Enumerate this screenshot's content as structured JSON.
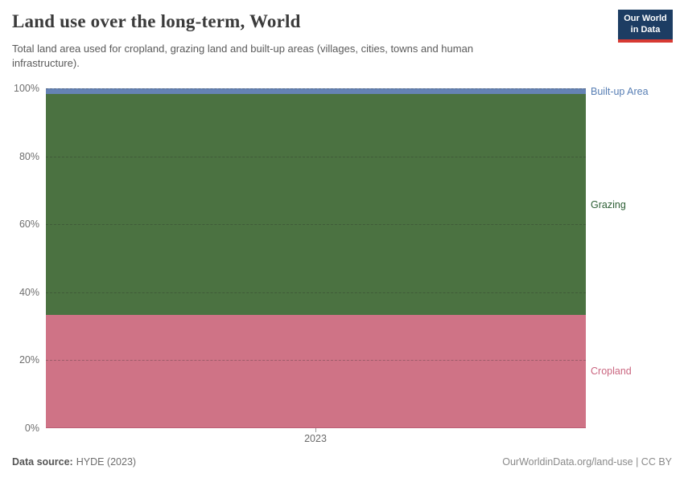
{
  "logo": {
    "line1": "Our World",
    "line2": "in Data"
  },
  "header": {
    "title": "Land use over the long-term, World",
    "subtitle": "Total land area used for cropland, grazing land and built-up areas (villages, cities, towns and human infrastructure)."
  },
  "chart_data": {
    "type": "area",
    "stacked": true,
    "normalized_to_100_percent": true,
    "title": "Land use over the long-term, World",
    "x": [
      "2023"
    ],
    "series": [
      {
        "name": "Cropland",
        "values": [
          33.3
        ],
        "color": "#cf7386"
      },
      {
        "name": "Grazing",
        "values": [
          65.2
        ],
        "color": "#4b7241"
      },
      {
        "name": "Built-up Area",
        "values": [
          1.5
        ],
        "color": "#6583b4"
      }
    ],
    "ylim": [
      0,
      100
    ],
    "yticks": [
      "0%",
      "20%",
      "40%",
      "60%",
      "80%",
      "100%"
    ],
    "xtick_labels": [
      "2023"
    ],
    "grid": "horizontal-dashed",
    "legend_position": "right-inline"
  },
  "axis": {
    "y": [
      "100%",
      "80%",
      "60%",
      "40%",
      "20%",
      "0%"
    ],
    "x": "2023"
  },
  "legend": {
    "items": [
      {
        "label": "Built-up Area",
        "color": "#577eb4"
      },
      {
        "label": "Grazing",
        "color": "#2c5e34"
      },
      {
        "label": "Cropland",
        "color": "#ca6680"
      }
    ]
  },
  "footer": {
    "source_label": "Data source:",
    "source_value": "HYDE (2023)",
    "license": "OurWorldinData.org/land-use | CC BY"
  }
}
